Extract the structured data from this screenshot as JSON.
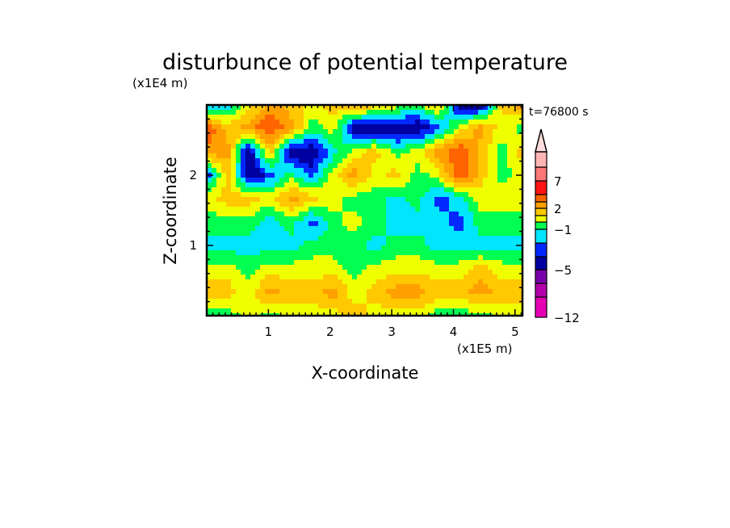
{
  "chart_data": {
    "type": "heatmap",
    "title": "disturbunce of potential temperature",
    "time_label": "t=76800 s",
    "xlabel": "X-coordinate",
    "ylabel": "Z-coordinate",
    "x_scale_label": "(x1E5 m)",
    "y_scale_label": "(x1E4 m)",
    "xlim": [
      0,
      5.12
    ],
    "ylim": [
      0,
      3.0
    ],
    "x_ticks": [
      1,
      2,
      3,
      4,
      5
    ],
    "x_tick_labels": [
      "1",
      "2",
      "3",
      "4",
      "5"
    ],
    "y_ticks": [
      1,
      2
    ],
    "y_tick_labels": [
      "1",
      "2"
    ],
    "grid_note": "rows from top (z high) to bottom (z low), columns from x=0 to x=max; approximate estimated values",
    "z_grid": [
      [
        -2.5,
        -1.5,
        0.5,
        2.5,
        1.5,
        0.5,
        1.5,
        2.5,
        1.5,
        0.5,
        -0.5,
        1.5,
        -4,
        -4,
        1.5,
        2.5
      ],
      [
        4,
        1.5,
        2.5,
        4,
        2.5,
        -0.5,
        0.5,
        -4,
        -4,
        -4,
        -4,
        -2.5,
        0.5,
        2.5,
        0.5,
        -0.5
      ],
      [
        2.5,
        2.5,
        -4,
        1.5,
        -4,
        -4,
        -1.5,
        0.5,
        1.5,
        -0.5,
        0.5,
        2.5,
        4,
        1.5,
        -0.5,
        1.5
      ],
      [
        -2.5,
        1.5,
        -4,
        -2.5,
        -0.5,
        -2.5,
        0.5,
        2.5,
        0.5,
        1.5,
        -0.5,
        0.5,
        4,
        1.5,
        -0.5,
        0.5
      ],
      [
        0.5,
        1.5,
        1.5,
        0.5,
        2.5,
        1.5,
        0.5,
        -0.5,
        -0.5,
        -1.5,
        -0.5,
        -2.5,
        -1.5,
        0.5,
        0.5,
        0.5
      ],
      [
        -0.5,
        -0.5,
        -0.5,
        -1.5,
        -0.5,
        -2.5,
        -0.5,
        0.5,
        -0.5,
        -1.5,
        -1.5,
        -1.5,
        -2.5,
        -0.5,
        -0.5,
        -0.5
      ],
      [
        -1.5,
        -1.5,
        -1.5,
        -1.5,
        -1.5,
        -0.5,
        -0.5,
        -0.5,
        -1.5,
        -0.5,
        -0.5,
        -1.5,
        -1.5,
        -1.5,
        -1.5,
        -1.5
      ],
      [
        0.5,
        0.5,
        -0.5,
        0.5,
        0.5,
        0.5,
        0.5,
        -0.5,
        0.5,
        0.5,
        0.5,
        0.5,
        0.5,
        1.5,
        0.5,
        0.5
      ],
      [
        1.5,
        1.5,
        0.5,
        2.5,
        1.5,
        1.5,
        2.5,
        0.5,
        1.5,
        2.5,
        2.5,
        1.5,
        1.5,
        2.5,
        1.5,
        1.5
      ],
      [
        -0.5,
        -0.5,
        0.5,
        -0.5,
        0.5,
        0.5,
        0.5,
        1.5,
        0.5,
        0.5,
        0.5,
        -0.5,
        -0.5,
        -0.5,
        0.5,
        0.5
      ]
    ],
    "colorbar": {
      "levels": [
        {
          "min": -12,
          "max": -9,
          "color": "#E600B4"
        },
        {
          "min": -9,
          "max": -7,
          "color": "#B400AA"
        },
        {
          "min": -7,
          "max": -5,
          "color": "#7800AA"
        },
        {
          "min": -5,
          "max": -3,
          "color": "#0000A0"
        },
        {
          "min": -3,
          "max": -2,
          "color": "#0028FF"
        },
        {
          "min": -2,
          "max": -1,
          "color": "#00E6FF"
        },
        {
          "min": -1,
          "max": 0,
          "color": "#00FF50"
        },
        {
          "min": 0,
          "max": 1,
          "color": "#F0FF00"
        },
        {
          "min": 1,
          "max": 2,
          "color": "#FFC800"
        },
        {
          "min": 2,
          "max": 3,
          "color": "#FFA000"
        },
        {
          "min": 3,
          "max": 5,
          "color": "#FF6400"
        },
        {
          "min": 5,
          "max": 7,
          "color": "#FF1414"
        },
        {
          "min": 7,
          "max": 9,
          "color": "#FF7878"
        },
        {
          "min": 9,
          "max": 11,
          "color": "#FFB4B4"
        }
      ],
      "over_color": "#FFDCDC",
      "tick_values": [
        7,
        2,
        -1,
        -5,
        -12
      ],
      "tick_labels": [
        "7",
        "2",
        "−1",
        "−5",
        "−12"
      ]
    }
  }
}
